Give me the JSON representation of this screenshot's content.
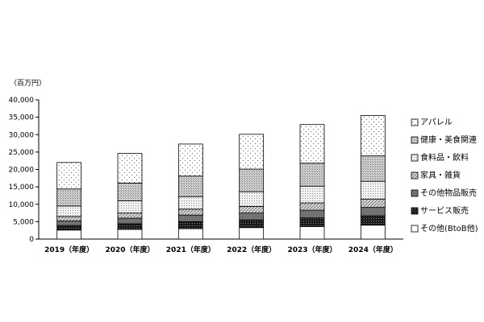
{
  "chart_data": {
    "type": "bar",
    "stacked": true,
    "unit_label": "（百万円）",
    "categories": [
      "2019（年度）",
      "2020（年度）",
      "2021（年度）",
      "2022（年度）",
      "2023（年度）",
      "2024（年度）"
    ],
    "ylim": [
      0,
      40000
    ],
    "yticks": [
      "0",
      "5,000",
      "10,000",
      "15,000",
      "20,000",
      "25,000",
      "30,000",
      "35,000",
      "40,000"
    ],
    "grid": false,
    "legend_position": "right",
    "series": [
      {
        "name": "その他(BtoB他)",
        "pattern": "white",
        "values": [
          2600,
          2800,
          3000,
          3300,
          3600,
          4000
        ]
      },
      {
        "name": "サービス販売",
        "pattern": "dark",
        "values": [
          1300,
          1600,
          2000,
          2200,
          2500,
          2700
        ]
      },
      {
        "name": "その他物品販売",
        "pattern": "gray",
        "values": [
          1300,
          1600,
          1900,
          2000,
          2200,
          2400
        ]
      },
      {
        "name": "家具・雑貨",
        "pattern": "hatch",
        "values": [
          1300,
          1500,
          1700,
          1900,
          2100,
          2400
        ]
      },
      {
        "name": "食料品・飲料",
        "pattern": "grid",
        "values": [
          3000,
          3500,
          3600,
          4200,
          4800,
          5100
        ]
      },
      {
        "name": "健康・美食関連",
        "pattern": "dense",
        "values": [
          4900,
          5100,
          5900,
          6500,
          6600,
          7300
        ]
      },
      {
        "name": "アパレル",
        "pattern": "dots",
        "values": [
          7600,
          8500,
          9200,
          10000,
          11100,
          11600
        ]
      }
    ]
  }
}
